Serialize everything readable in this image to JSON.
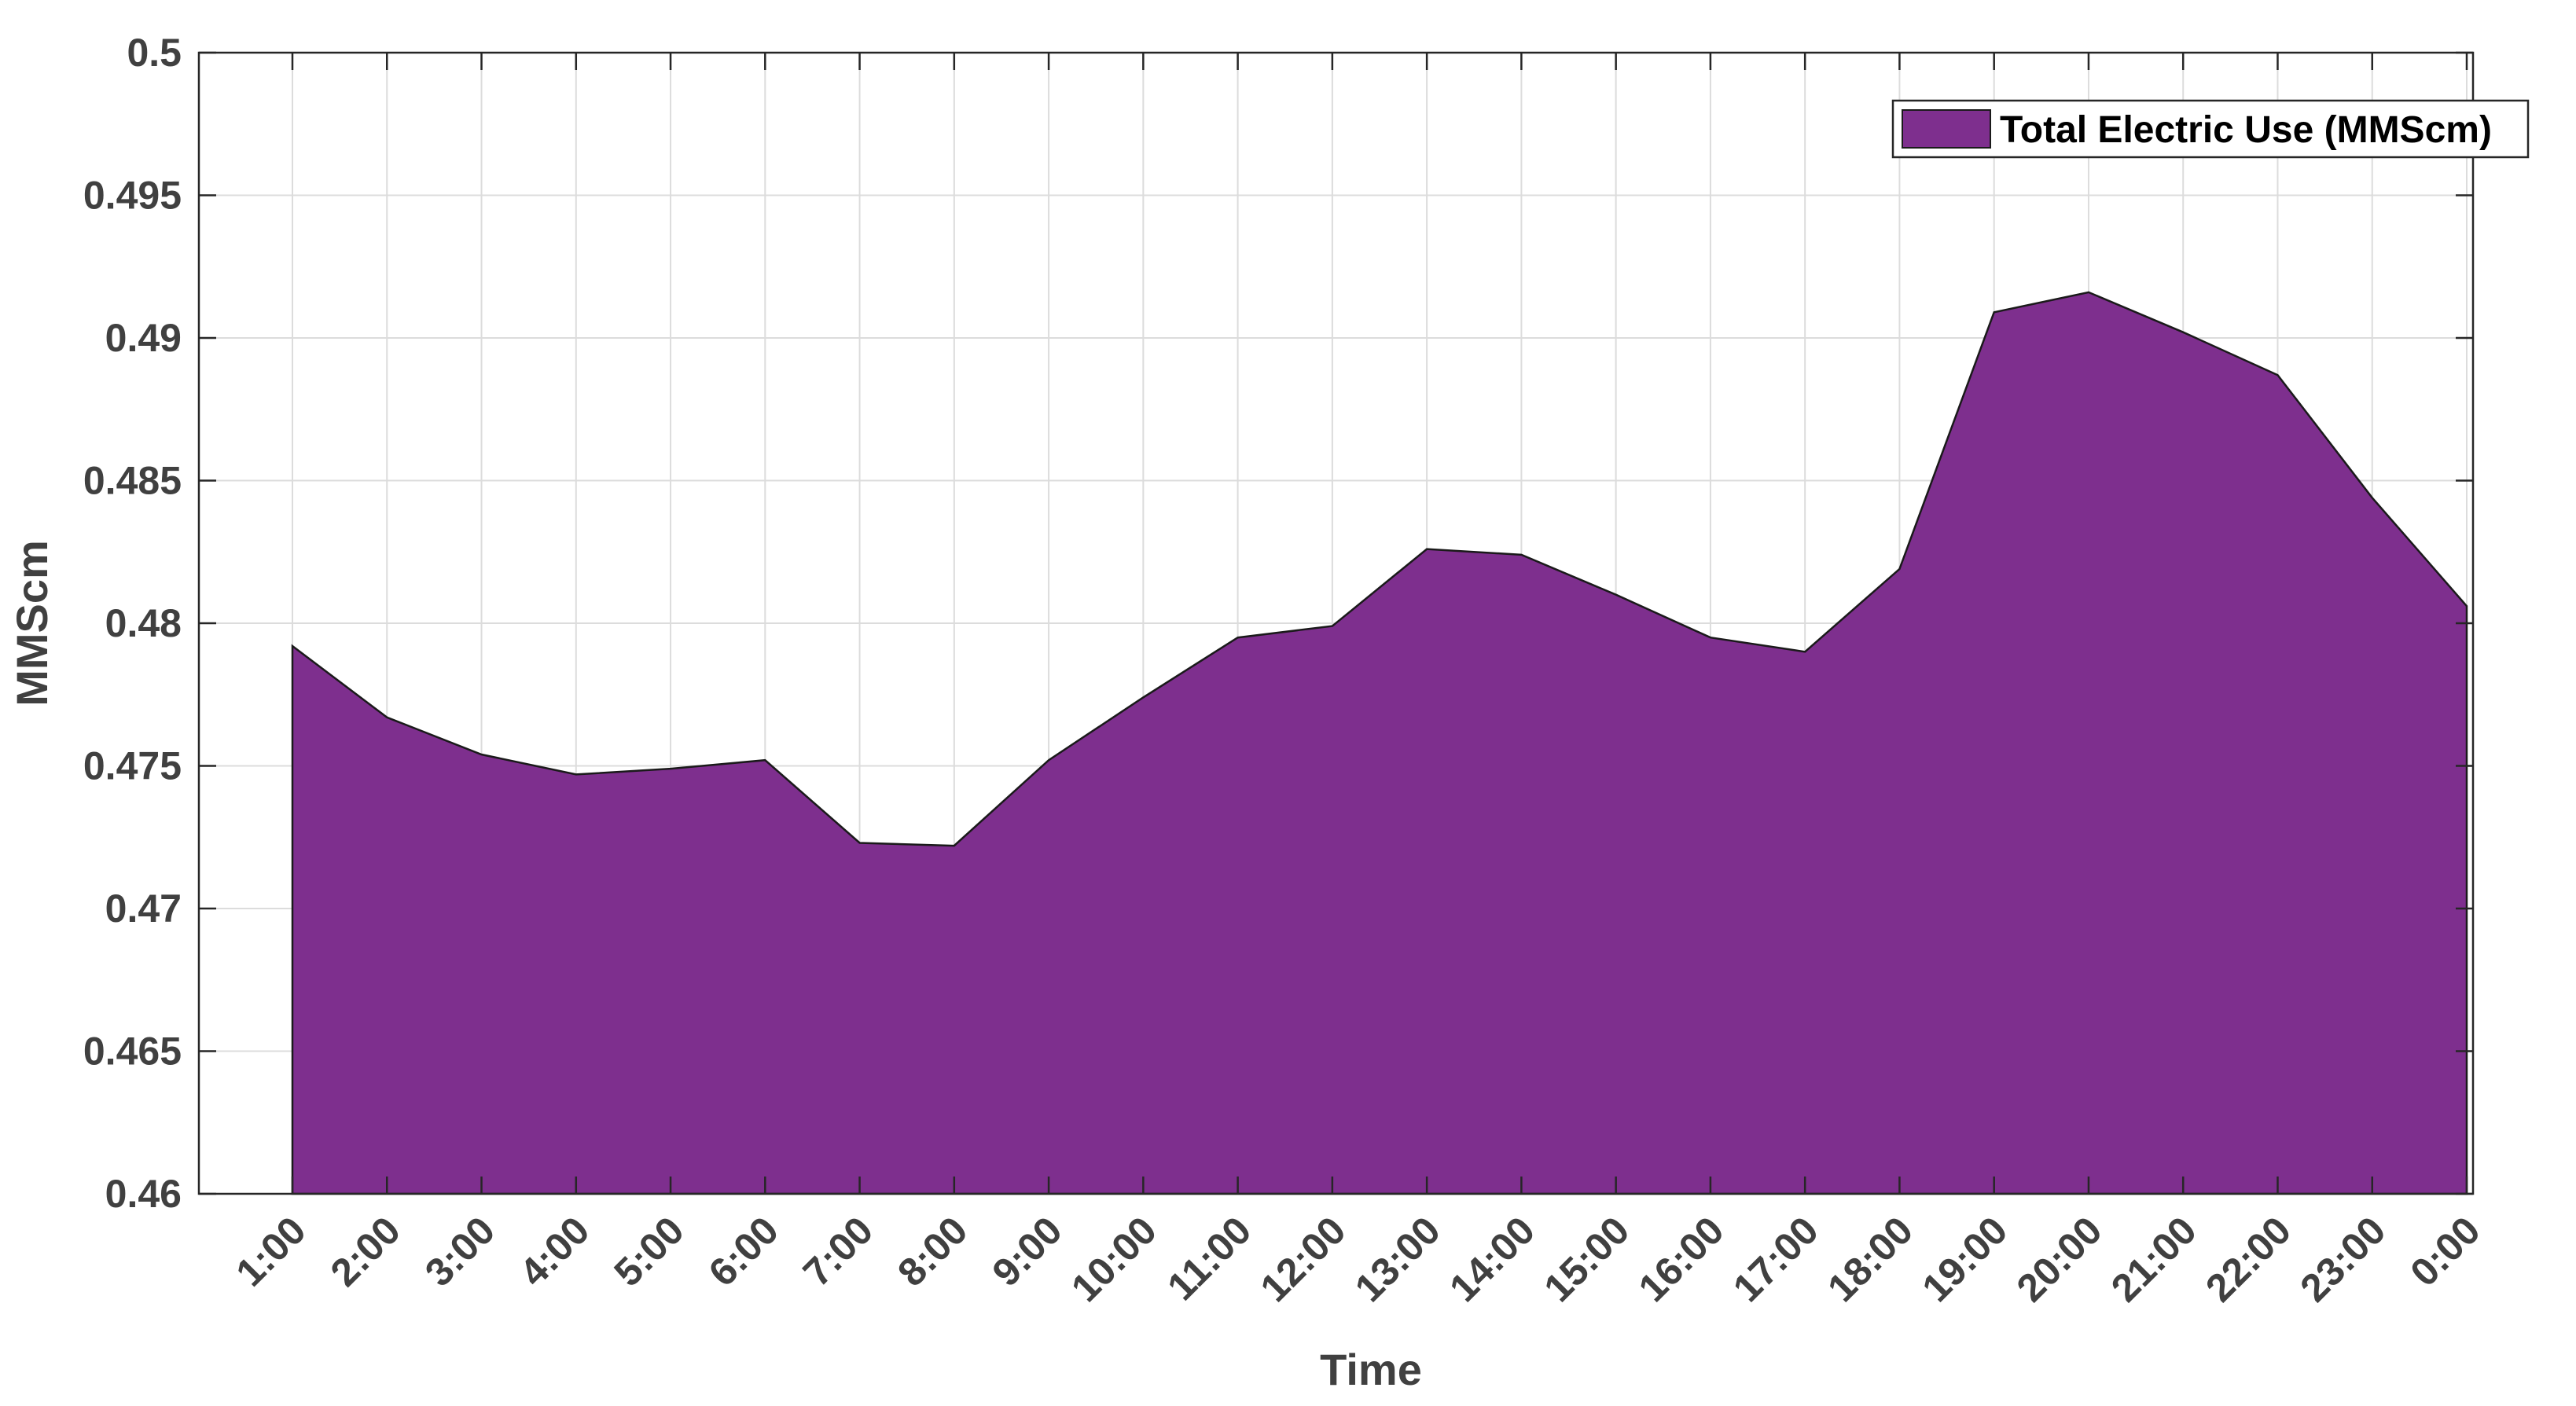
{
  "chart_data": {
    "type": "area",
    "title": "",
    "xlabel": "Time",
    "ylabel": "MMScm",
    "categories": [
      "1:00",
      "2:00",
      "3:00",
      "4:00",
      "5:00",
      "6:00",
      "7:00",
      "8:00",
      "9:00",
      "10:00",
      "11:00",
      "12:00",
      "13:00",
      "14:00",
      "15:00",
      "16:00",
      "17:00",
      "18:00",
      "19:00",
      "20:00",
      "21:00",
      "22:00",
      "23:00",
      "0:00"
    ],
    "series": [
      {
        "name": "Total Electric Use (MMScm)",
        "color": "#7E2F8E",
        "values": [
          0.4792,
          0.4767,
          0.4754,
          0.4747,
          0.4749,
          0.4752,
          0.4723,
          0.4722,
          0.4752,
          0.4774,
          0.4795,
          0.4799,
          0.4826,
          0.4824,
          0.481,
          0.4795,
          0.479,
          0.4819,
          0.4909,
          0.4916,
          0.4902,
          0.4887,
          0.4844,
          0.4806
        ]
      }
    ],
    "ylim": [
      0.46,
      0.5
    ],
    "yticks": [
      "0.46",
      "0.465",
      "0.47",
      "0.475",
      "0.48",
      "0.485",
      "0.49",
      "0.495",
      "0.5"
    ],
    "grid": true,
    "legend_position": "top-right"
  }
}
